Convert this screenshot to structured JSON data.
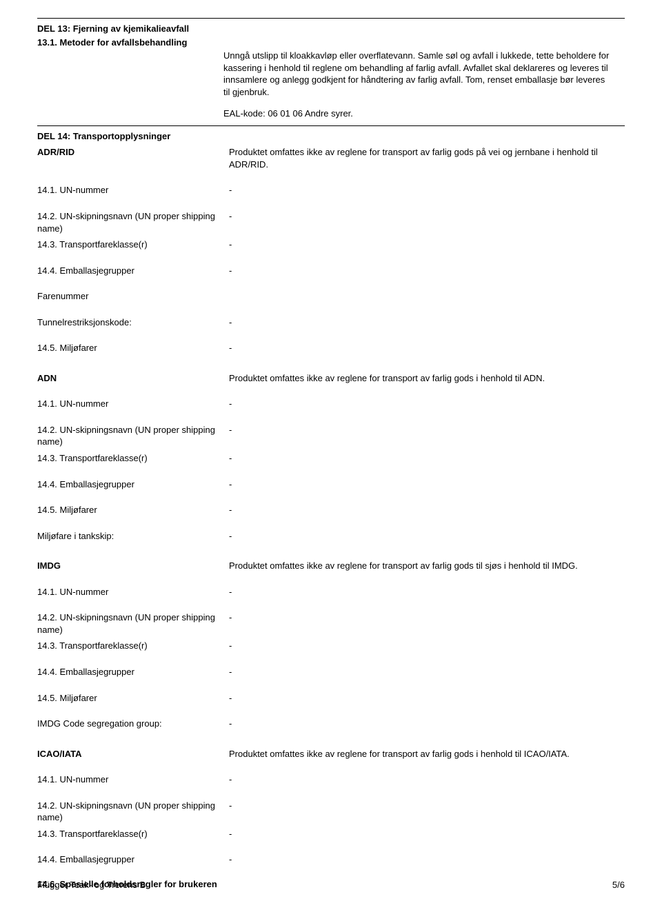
{
  "rules": {
    "topAt": 0
  },
  "del13": {
    "title": "DEL 13: Fjerning av kjemikalieavfall",
    "sub": "13.1. Metoder for avfallsbehandling",
    "para1": "Unngå utslipp til kloakkavløp eller overflatevann. Samle søl og avfall i lukkede, tette beholdere for kassering i henhold til reglene om behandling af farlig avfall. Avfallet skal deklareres og leveres til innsamlere og anlegg godkjent for håndtering av farlig avfall. Tom, renset emballasje bør leveres til gjenbruk.",
    "ealkode": "EAL-kode: 06 01 06 Andre syrer."
  },
  "del14": {
    "title": "DEL 14: Transportopplysninger",
    "adrrid": {
      "label": "ADR/RID",
      "desc": "Produktet omfattes ikke av reglene for transport av farlig gods på vei og jernbane i henhold til ADR/RID.",
      "rows": {
        "un_l": "14.1. UN-nummer",
        "un_v": "-",
        "skip_l": "14.2. UN-skipningsnavn (UN proper shipping name)",
        "skip_v": "-",
        "klass_l": "14.3. Transportfareklasse(r)",
        "klass_v": "-",
        "emb_l": "14.4. Emballasjegrupper",
        "emb_v": "-",
        "farenummer_l": "Farenummer",
        "tunnel_l": "Tunnelrestriksjonskode:",
        "tunnel_v": "-",
        "miljo_l": "14.5. Miljøfarer",
        "miljo_v": "-"
      }
    },
    "adn": {
      "label": "ADN",
      "desc": "Produktet omfattes ikke av reglene for transport av farlig gods i henhold til ADN.",
      "rows": {
        "un_l": "14.1. UN-nummer",
        "un_v": "-",
        "skip_l": "14.2. UN-skipningsnavn (UN proper shipping name)",
        "skip_v": "-",
        "klass_l": "14.3. Transportfareklasse(r)",
        "klass_v": "-",
        "emb_l": "14.4. Emballasjegrupper",
        "emb_v": "-",
        "miljo_l": "14.5. Miljøfarer",
        "miljo_v": "-",
        "tank_l": "Miljøfare i tankskip:",
        "tank_v": "-"
      }
    },
    "imdg": {
      "label": "IMDG",
      "desc": "Produktet omfattes ikke av reglene for transport av farlig gods til sjøs i henhold til IMDG.",
      "rows": {
        "un_l": "14.1. UN-nummer",
        "un_v": "-",
        "skip_l": "14.2. UN-skipningsnavn (UN proper shipping name)",
        "skip_v": "-",
        "klass_l": "14.3. Transportfareklasse(r)",
        "klass_v": "-",
        "emb_l": "14.4. Emballasjegrupper",
        "emb_v": "-",
        "miljo_l": "14.5. Miljøfarer",
        "miljo_v": "-",
        "seg_l": "IMDG Code segregation group:",
        "seg_v": "-"
      }
    },
    "icao": {
      "label": "ICAO/IATA",
      "desc": "Produktet omfattes ikke av reglene for transport av farlig gods i henhold til ICAO/IATA.",
      "rows": {
        "un_l": "14.1. UN-nummer",
        "un_v": "-",
        "skip_l": "14.2. UN-skipningsnavn (UN proper shipping name)",
        "skip_v": "-",
        "klass_l": "14.3. Transportfareklasse(r)",
        "klass_v": "-",
        "emb_l": "14.4. Emballasjegrupper",
        "emb_v": "-"
      }
    },
    "subsection_146": "14.6. Spesielle forholdsregler for brukeren"
  },
  "footer": {
    "left": "Flügger Teak- og Trerens B",
    "right": "5/6"
  }
}
